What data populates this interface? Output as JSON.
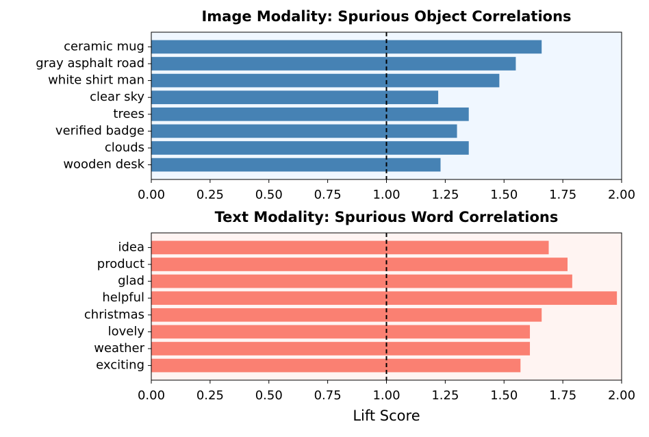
{
  "chart_data": [
    {
      "type": "bar",
      "orientation": "horizontal",
      "title": "Image Modality: Spurious Object Correlations",
      "categories": [
        "ceramic mug",
        "gray asphalt road",
        "white shirt man",
        "clear sky",
        "trees",
        "verified badge",
        "clouds",
        "wooden desk"
      ],
      "values": [
        1.66,
        1.55,
        1.48,
        1.22,
        1.35,
        1.3,
        1.35,
        1.23
      ],
      "color": "#4682b4",
      "background": "#f0f7ff",
      "xlim": [
        0,
        2
      ],
      "xticks": [
        {
          "value": 0,
          "label": "0.00"
        },
        {
          "value": 0.25,
          "label": "0.25"
        },
        {
          "value": 0.5,
          "label": "0.50"
        },
        {
          "value": 0.75,
          "label": "0.75"
        },
        {
          "value": 1,
          "label": "1.00"
        },
        {
          "value": 1.25,
          "label": "1.25"
        },
        {
          "value": 1.5,
          "label": "1.50"
        },
        {
          "value": 1.75,
          "label": "1.75"
        },
        {
          "value": 2,
          "label": "2.00"
        }
      ],
      "reference_line": 1
    },
    {
      "type": "bar",
      "orientation": "horizontal",
      "title": "Text Modality: Spurious Word Correlations",
      "categories": [
        "idea",
        "product",
        "glad",
        "helpful",
        "christmas",
        "lovely",
        "weather",
        "exciting"
      ],
      "values": [
        1.69,
        1.77,
        1.79,
        1.98,
        1.66,
        1.61,
        1.61,
        1.57
      ],
      "color": "#fa8072",
      "background": "#fff4f2",
      "xlim": [
        0,
        2
      ],
      "xticks": [
        {
          "value": 0,
          "label": "0.00"
        },
        {
          "value": 0.25,
          "label": "0.25"
        },
        {
          "value": 0.5,
          "label": "0.50"
        },
        {
          "value": 0.75,
          "label": "0.75"
        },
        {
          "value": 1,
          "label": "1.00"
        },
        {
          "value": 1.25,
          "label": "1.25"
        },
        {
          "value": 1.5,
          "label": "1.50"
        },
        {
          "value": 1.75,
          "label": "1.75"
        },
        {
          "value": 2,
          "label": "2.00"
        }
      ],
      "reference_line": 1,
      "xlabel": "Lift Score"
    }
  ]
}
